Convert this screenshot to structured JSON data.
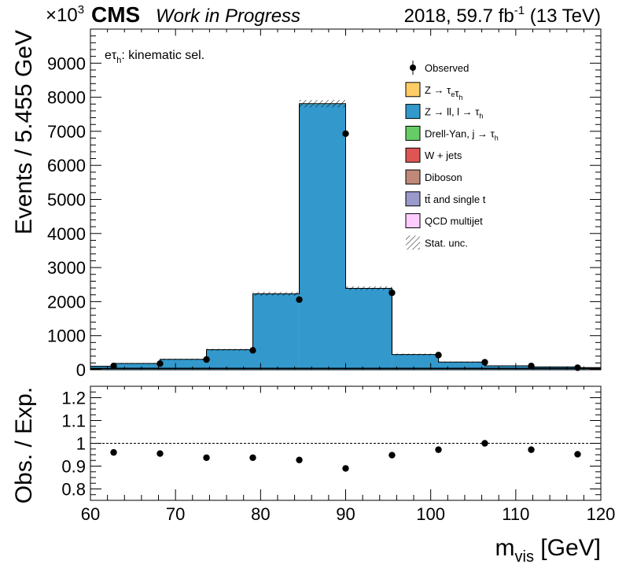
{
  "header": {
    "exponent_prefix": "×10",
    "exponent_power": "3",
    "experiment": "CMS",
    "status": "Work in Progress",
    "lumi_prefix": "2018, 59.7 fb",
    "lumi_power": "-1",
    "lumi_suffix": " (13 TeV)"
  },
  "annotation": {
    "main": "eτ",
    "sub": "h",
    "rest": ": kinematic sel."
  },
  "chart_data": [
    {
      "type": "bar",
      "panel": "main",
      "ylabel": "Events / 5.455 GeV",
      "xlim": [
        60,
        120
      ],
      "ylim": [
        0,
        10000
      ],
      "yticks": [
        0,
        1000,
        2000,
        3000,
        4000,
        5000,
        6000,
        7000,
        8000,
        9000
      ],
      "bin_edges": [
        57.27,
        62.73,
        68.18,
        73.64,
        79.09,
        84.55,
        90.0,
        95.45,
        100.91,
        106.36,
        111.82,
        117.27,
        122.73
      ],
      "series": [
        {
          "name": "Z → ll, l → τh",
          "color": "#3399cc",
          "values": [
            100,
            180,
            300,
            580,
            2220,
            7800,
            2380,
            440,
            220,
            110,
            80,
            60
          ]
        },
        {
          "name": "Drell-Yan, j → τh",
          "color": "#66cc66",
          "values": [
            3,
            5,
            6,
            8,
            10,
            12,
            10,
            8,
            6,
            5,
            4,
            3
          ]
        }
      ],
      "observed": {
        "name": "Observed",
        "x": [
          62.73,
          68.18,
          73.64,
          79.09,
          84.55,
          90.0,
          95.45,
          100.91,
          106.36,
          111.82,
          117.27
        ],
        "y": [
          110,
          180,
          300,
          570,
          2060,
          6930,
          2260,
          430,
          220,
          110,
          60
        ]
      },
      "legend": [
        {
          "label": "Observed",
          "kind": "marker",
          "color": "#000000"
        },
        {
          "label": "Z → τeτh",
          "kind": "box",
          "color": "#ffcc66"
        },
        {
          "label": "Z → ll, l → τh",
          "kind": "box",
          "color": "#3399cc"
        },
        {
          "label": "Drell-Yan, j → τh",
          "kind": "box",
          "color": "#66cc66"
        },
        {
          "label": "W + jets",
          "kind": "box",
          "color": "#dd5555"
        },
        {
          "label": "Diboson",
          "kind": "box",
          "color": "#c08878"
        },
        {
          "label": "tt̄ and single t",
          "kind": "box",
          "color": "#9999cc"
        },
        {
          "label": "QCD multijet",
          "kind": "box",
          "color": "#ffccff"
        },
        {
          "label": "Stat. unc.",
          "kind": "hatch",
          "color": "#000000"
        }
      ],
      "legend_position": "top-right"
    },
    {
      "type": "scatter",
      "panel": "ratio",
      "ylabel": "Obs. / Exp.",
      "xlabel": "m",
      "xlabel_sub": "vis",
      "xlabel_unit": " [GeV]",
      "xlim": [
        60,
        120
      ],
      "ylim": [
        0.75,
        1.25
      ],
      "yticks": [
        0.8,
        0.9,
        1,
        1.1,
        1.2
      ],
      "xticks": [
        60,
        70,
        80,
        90,
        100,
        110,
        120
      ],
      "reference_line": 1,
      "x": [
        62.73,
        68.18,
        73.64,
        79.09,
        84.55,
        90.0,
        95.45,
        100.91,
        106.36,
        111.82,
        117.27
      ],
      "y": [
        0.96,
        0.955,
        0.937,
        0.937,
        0.927,
        0.89,
        0.948,
        0.972,
        1.0,
        0.972,
        0.952
      ]
    }
  ]
}
